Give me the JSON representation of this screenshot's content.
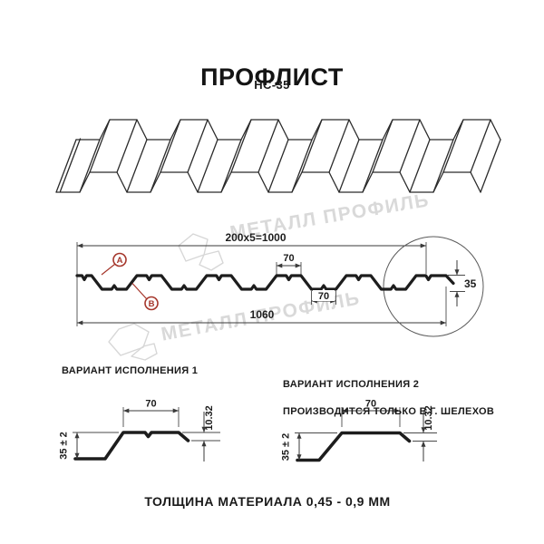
{
  "header": {
    "title": "ПРОФЛИСТ",
    "model": "НС-35"
  },
  "watermark": {
    "text": "МЕТАЛЛ ПРОФИЛЬ"
  },
  "cross_section": {
    "dim_top_total": "200x5=1000",
    "dim_bottom_total": "1060",
    "dim_crest_width": "70",
    "dim_valley_width": "70",
    "dim_profile_height": "35",
    "callout_a": "А",
    "callout_b": "В"
  },
  "variant1": {
    "heading": "ВАРИАНТ ИСПОЛНЕНИЯ 1",
    "dim_top_width": "70",
    "dim_height": "35 ± 2",
    "dim_edge_height": "10.32"
  },
  "variant2": {
    "heading": "ВАРИАНТ ИСПОЛНЕНИЯ 2",
    "heading_note": "ПРОИЗВОДИТСЯ ТОЛЬКО В Г. ШЕЛЕХОВ",
    "dim_top_width": "70",
    "dim_height": "35 ± 2",
    "dim_edge_height": "10.32"
  },
  "footer": {
    "note": "ТОЛЩИНА МАТЕРИАЛА 0,45 - 0,9 ММ"
  },
  "colors": {
    "accent_red": "#a5362b",
    "line_dark": "#1d1d1d",
    "dim_line": "#3a3a3a",
    "watermark_gray": "#d9d9d9",
    "background": "#ffffff"
  }
}
